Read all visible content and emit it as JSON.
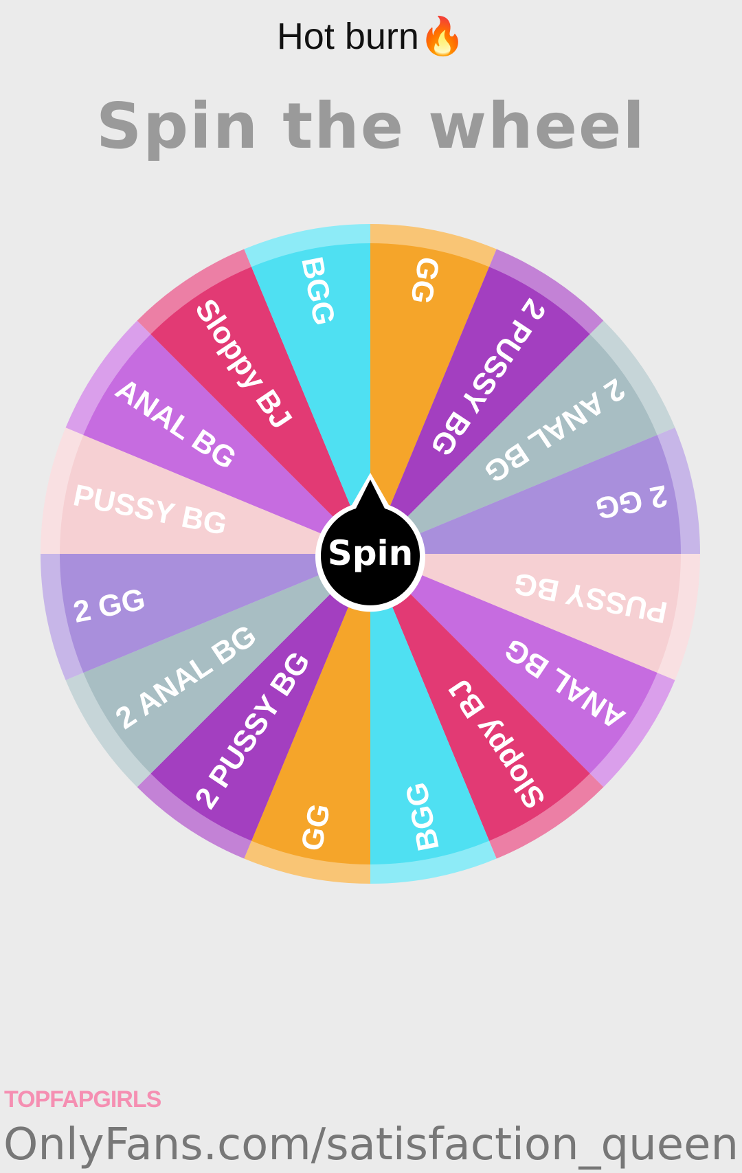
{
  "header": {
    "title": "Hot burn",
    "title_emoji": "🔥",
    "heading": "Spin the wheel"
  },
  "wheel": {
    "spin_label": "Spin",
    "segments": [
      {
        "label": "GG",
        "color": "#f5a52a"
      },
      {
        "label": "2 PUSSY BG",
        "color": "#a33fc0"
      },
      {
        "label": "2 ANAL BG",
        "color": "#a8bec3"
      },
      {
        "label": "2 GG",
        "color": "#a98fdc"
      },
      {
        "label": "PUSSY BG",
        "color": "#f6d0d3"
      },
      {
        "label": "ANAL BG",
        "color": "#c66ce0"
      },
      {
        "label": "Sloppy BJ",
        "color": "#e23a74"
      },
      {
        "label": "BGG",
        "color": "#4fe0f2"
      },
      {
        "label": "GG",
        "color": "#f5a52a"
      },
      {
        "label": "2 PUSSY BG",
        "color": "#a33fc0"
      },
      {
        "label": "2 ANAL BG",
        "color": "#a8bec3"
      },
      {
        "label": "2 GG",
        "color": "#a98fdc"
      },
      {
        "label": "PUSSY BG",
        "color": "#f6d0d3"
      },
      {
        "label": "ANAL BG",
        "color": "#c66ce0"
      },
      {
        "label": "Sloppy BJ",
        "color": "#e23a74"
      },
      {
        "label": "BGG",
        "color": "#4fe0f2"
      }
    ]
  },
  "footer": {
    "text": "OnlyFans.com/satisfaction_queen",
    "watermark": "TOPFAPGIRLS"
  }
}
